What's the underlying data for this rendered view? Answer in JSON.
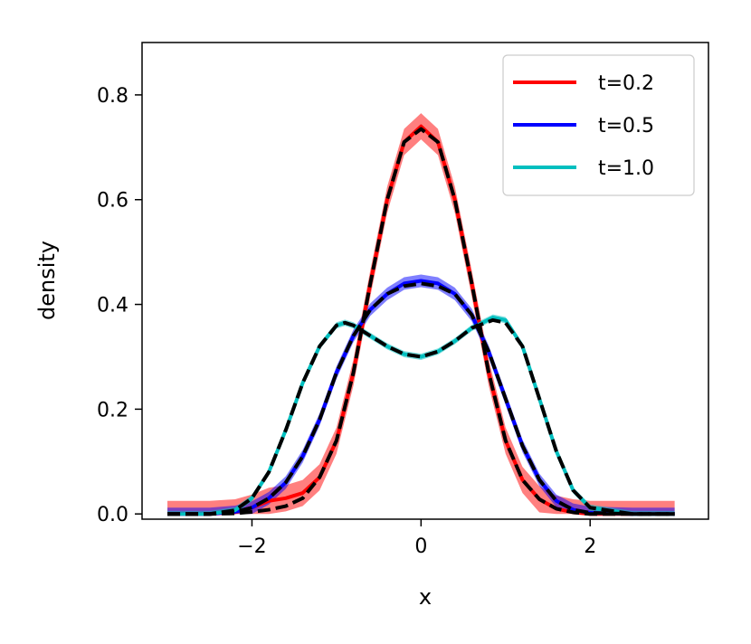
{
  "chart_data": {
    "type": "line",
    "title": "",
    "xlabel": "x",
    "ylabel": "density",
    "xlim": [
      -3.3,
      3.4
    ],
    "ylim": [
      -0.01,
      0.9
    ],
    "x_ticks": [
      -2,
      0,
      2
    ],
    "x_tick_labels": [
      "−2",
      "0",
      "2"
    ],
    "y_ticks": [
      0.0,
      0.2,
      0.4,
      0.6,
      0.8
    ],
    "y_tick_labels": [
      "0.0",
      "0.2",
      "0.4",
      "0.6",
      "0.8"
    ],
    "grid": false,
    "legend_position": "top-right",
    "series": [
      {
        "name": "t=0.2",
        "color": "#ff0000",
        "band": 0.025,
        "x": [
          -3.0,
          -2.5,
          -2.2,
          -2.0,
          -1.8,
          -1.6,
          -1.4,
          -1.2,
          -1.0,
          -0.8,
          -0.6,
          -0.4,
          -0.2,
          0.0,
          0.2,
          0.4,
          0.6,
          0.8,
          1.0,
          1.2,
          1.4,
          1.6,
          1.8,
          2.0,
          2.5,
          3.0
        ],
        "y": [
          0.0,
          0.0,
          0.003,
          0.012,
          0.025,
          0.03,
          0.04,
          0.07,
          0.14,
          0.27,
          0.44,
          0.6,
          0.71,
          0.74,
          0.71,
          0.6,
          0.44,
          0.27,
          0.14,
          0.065,
          0.028,
          0.01,
          0.003,
          0.0,
          0.0,
          0.0
        ]
      },
      {
        "name": "t=0.5",
        "color": "#0000ff",
        "band": 0.012,
        "x": [
          -3.0,
          -2.5,
          -2.2,
          -2.0,
          -1.8,
          -1.6,
          -1.4,
          -1.2,
          -1.0,
          -0.8,
          -0.6,
          -0.4,
          -0.2,
          0.0,
          0.2,
          0.4,
          0.6,
          0.8,
          1.0,
          1.2,
          1.4,
          1.6,
          1.8,
          2.0,
          2.5,
          3.0
        ],
        "y": [
          0.0,
          0.0,
          0.004,
          0.012,
          0.03,
          0.06,
          0.11,
          0.18,
          0.27,
          0.34,
          0.39,
          0.42,
          0.44,
          0.445,
          0.44,
          0.42,
          0.38,
          0.31,
          0.22,
          0.13,
          0.065,
          0.025,
          0.008,
          0.002,
          0.0,
          0.0
        ]
      },
      {
        "name": "t=1.0",
        "color": "#00bfbf",
        "band": 0.006,
        "x": [
          -3.0,
          -2.5,
          -2.2,
          -2.0,
          -1.8,
          -1.6,
          -1.4,
          -1.2,
          -1.0,
          -0.9,
          -0.8,
          -0.6,
          -0.4,
          -0.2,
          0.0,
          0.2,
          0.4,
          0.6,
          0.85,
          1.0,
          1.2,
          1.4,
          1.6,
          1.8,
          2.0,
          2.5,
          3.0
        ],
        "y": [
          0.0,
          0.0,
          0.007,
          0.03,
          0.08,
          0.16,
          0.25,
          0.32,
          0.36,
          0.365,
          0.36,
          0.34,
          0.32,
          0.305,
          0.3,
          0.31,
          0.33,
          0.355,
          0.375,
          0.37,
          0.32,
          0.22,
          0.12,
          0.045,
          0.012,
          0.0,
          0.0
        ]
      },
      {
        "name": "",
        "color": "#000000",
        "dashed": true,
        "x": [
          -3.0,
          -2.5,
          -2.2,
          -2.0,
          -1.8,
          -1.6,
          -1.4,
          -1.2,
          -1.0,
          -0.8,
          -0.6,
          -0.4,
          -0.2,
          0.0,
          0.2,
          0.4,
          0.6,
          0.8,
          1.0,
          1.2,
          1.4,
          1.6,
          1.8,
          2.0,
          2.5,
          3.0
        ],
        "y": [
          0.0,
          0.0,
          0.001,
          0.004,
          0.008,
          0.015,
          0.03,
          0.07,
          0.14,
          0.27,
          0.44,
          0.6,
          0.71,
          0.735,
          0.71,
          0.6,
          0.44,
          0.27,
          0.14,
          0.065,
          0.028,
          0.01,
          0.003,
          0.0,
          0.0,
          0.0
        ]
      },
      {
        "name": "",
        "color": "#000000",
        "dashed": true,
        "x": [
          -3.0,
          -2.5,
          -2.2,
          -2.0,
          -1.8,
          -1.6,
          -1.4,
          -1.2,
          -1.0,
          -0.8,
          -0.6,
          -0.4,
          -0.2,
          0.0,
          0.2,
          0.4,
          0.6,
          0.8,
          1.0,
          1.2,
          1.4,
          1.6,
          1.8,
          2.0,
          2.5,
          3.0
        ],
        "y": [
          0.0,
          0.0,
          0.004,
          0.012,
          0.03,
          0.06,
          0.11,
          0.18,
          0.27,
          0.34,
          0.39,
          0.42,
          0.435,
          0.44,
          0.435,
          0.42,
          0.38,
          0.31,
          0.22,
          0.13,
          0.065,
          0.025,
          0.008,
          0.002,
          0.0,
          0.0
        ]
      },
      {
        "name": "",
        "color": "#000000",
        "dashed": true,
        "x": [
          -3.0,
          -2.5,
          -2.2,
          -2.0,
          -1.8,
          -1.6,
          -1.4,
          -1.2,
          -1.0,
          -0.9,
          -0.8,
          -0.6,
          -0.4,
          -0.2,
          0.0,
          0.2,
          0.4,
          0.6,
          0.85,
          1.0,
          1.2,
          1.4,
          1.6,
          1.8,
          2.0,
          2.5,
          3.0
        ],
        "y": [
          0.0,
          0.0,
          0.007,
          0.03,
          0.08,
          0.16,
          0.25,
          0.32,
          0.36,
          0.365,
          0.36,
          0.34,
          0.32,
          0.305,
          0.3,
          0.31,
          0.33,
          0.355,
          0.37,
          0.365,
          0.32,
          0.22,
          0.12,
          0.045,
          0.012,
          0.0,
          0.0
        ]
      }
    ]
  }
}
